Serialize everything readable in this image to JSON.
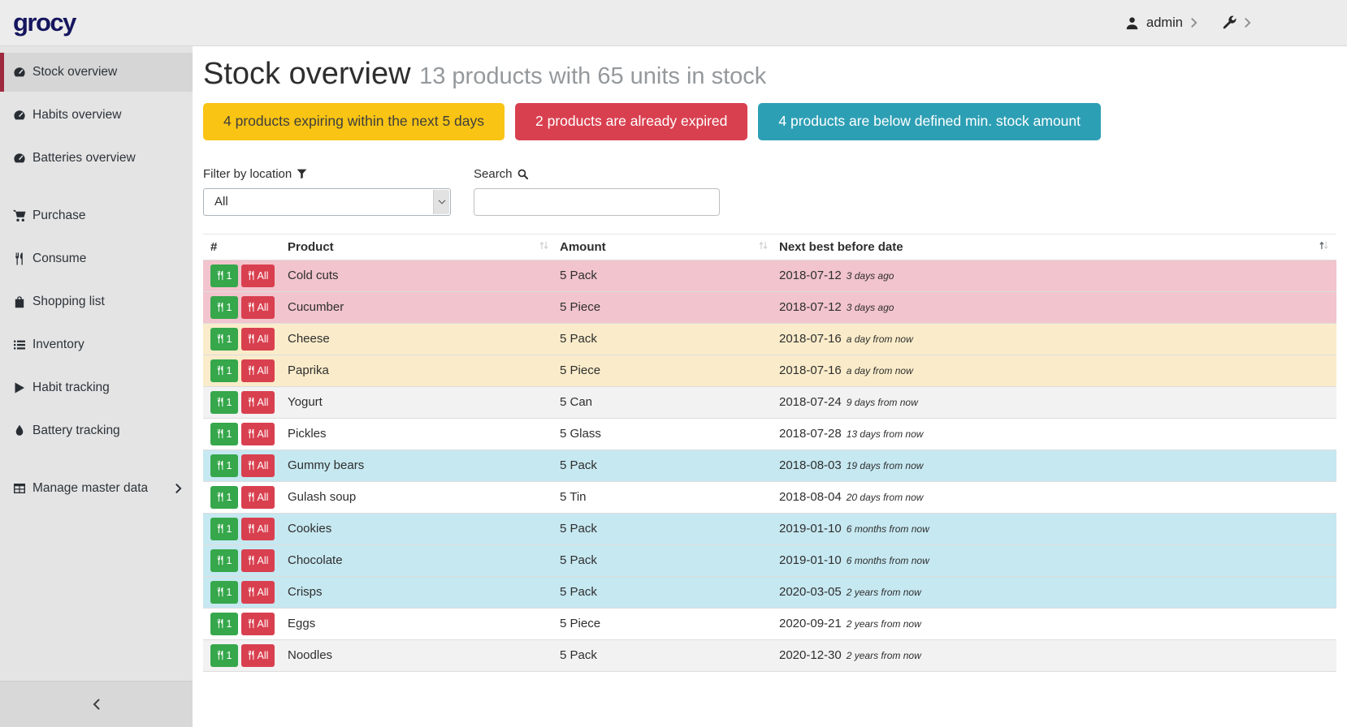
{
  "topbar": {
    "logo": "grocy",
    "user": {
      "name": "admin",
      "icon": "user-icon"
    },
    "settings_icon": "wrench-icon"
  },
  "sidebar": {
    "groups": [
      {
        "items": [
          {
            "icon": "tachometer-icon",
            "label": "Stock overview",
            "active": true
          },
          {
            "icon": "tachometer-icon",
            "label": "Habits overview"
          },
          {
            "icon": "tachometer-icon",
            "label": "Batteries overview"
          }
        ]
      },
      {
        "items": [
          {
            "icon": "cart-icon",
            "label": "Purchase"
          },
          {
            "icon": "utensils-icon",
            "label": "Consume"
          },
          {
            "icon": "bag-icon",
            "label": "Shopping list"
          },
          {
            "icon": "list-icon",
            "label": "Inventory"
          },
          {
            "icon": "play-icon",
            "label": "Habit tracking"
          },
          {
            "icon": "droplet-icon",
            "label": "Battery tracking"
          }
        ]
      },
      {
        "items": [
          {
            "icon": "table-icon",
            "label": "Manage master data",
            "chevron": true
          }
        ]
      }
    ]
  },
  "header": {
    "title": "Stock overview",
    "subtitle": "13 products with 65 units in stock"
  },
  "alerts": [
    {
      "label": "4 products expiring within the next 5 days",
      "type": "warning"
    },
    {
      "label": "2 products are already expired",
      "type": "danger"
    },
    {
      "label": "4 products are below defined min. stock amount",
      "type": "info"
    }
  ],
  "filter": {
    "label": "Filter by location",
    "icon": "filter-icon",
    "selected": "All"
  },
  "search": {
    "label": "Search",
    "icon": "search-icon",
    "value": "",
    "placeholder": ""
  },
  "table": {
    "columns": [
      "#",
      "Product",
      "Amount",
      "Next best before date"
    ],
    "sort": {
      "column": "Next best before date",
      "direction": "asc"
    },
    "row_buttons": {
      "consume_one": "1",
      "consume_all": "All"
    },
    "rows": [
      {
        "product": "Cold cuts",
        "amount": "5 Pack",
        "date": "2018-07-12",
        "relative": "3 days ago",
        "status": "expired"
      },
      {
        "product": "Cucumber",
        "amount": "5 Piece",
        "date": "2018-07-12",
        "relative": "3 days ago",
        "status": "expired"
      },
      {
        "product": "Cheese",
        "amount": "5 Pack",
        "date": "2018-07-16",
        "relative": "a day from now",
        "status": "expiring"
      },
      {
        "product": "Paprika",
        "amount": "5 Piece",
        "date": "2018-07-16",
        "relative": "a day from now",
        "status": "expiring"
      },
      {
        "product": "Yogurt",
        "amount": "5 Can",
        "date": "2018-07-24",
        "relative": "9 days from now",
        "status": "stripe"
      },
      {
        "product": "Pickles",
        "amount": "5 Glass",
        "date": "2018-07-28",
        "relative": "13 days from now",
        "status": "none"
      },
      {
        "product": "Gummy bears",
        "amount": "5 Pack",
        "date": "2018-08-03",
        "relative": "19 days from now",
        "status": "below-min"
      },
      {
        "product": "Gulash soup",
        "amount": "5 Tin",
        "date": "2018-08-04",
        "relative": "20 days from now",
        "status": "none"
      },
      {
        "product": "Cookies",
        "amount": "5 Pack",
        "date": "2019-01-10",
        "relative": "6 months from now",
        "status": "below-min"
      },
      {
        "product": "Chocolate",
        "amount": "5 Pack",
        "date": "2019-01-10",
        "relative": "6 months from now",
        "status": "below-min"
      },
      {
        "product": "Crisps",
        "amount": "5 Pack",
        "date": "2020-03-05",
        "relative": "2 years from now",
        "status": "below-min"
      },
      {
        "product": "Eggs",
        "amount": "5 Piece",
        "date": "2020-09-21",
        "relative": "2 years from now",
        "status": "none"
      },
      {
        "product": "Noodles",
        "amount": "5 Pack",
        "date": "2020-12-30",
        "relative": "2 years from now",
        "status": "stripe"
      }
    ]
  },
  "colors": {
    "brand": "#16165f",
    "warning": "#f9c413",
    "danger": "#d9404f",
    "info": "#2d9fb4",
    "success": "#36a74b",
    "active_item_border": "#9f2a3f",
    "row_expired": "#f2c4cd",
    "row_expiring": "#faecca",
    "row_below_min": "#c6e8f1"
  }
}
